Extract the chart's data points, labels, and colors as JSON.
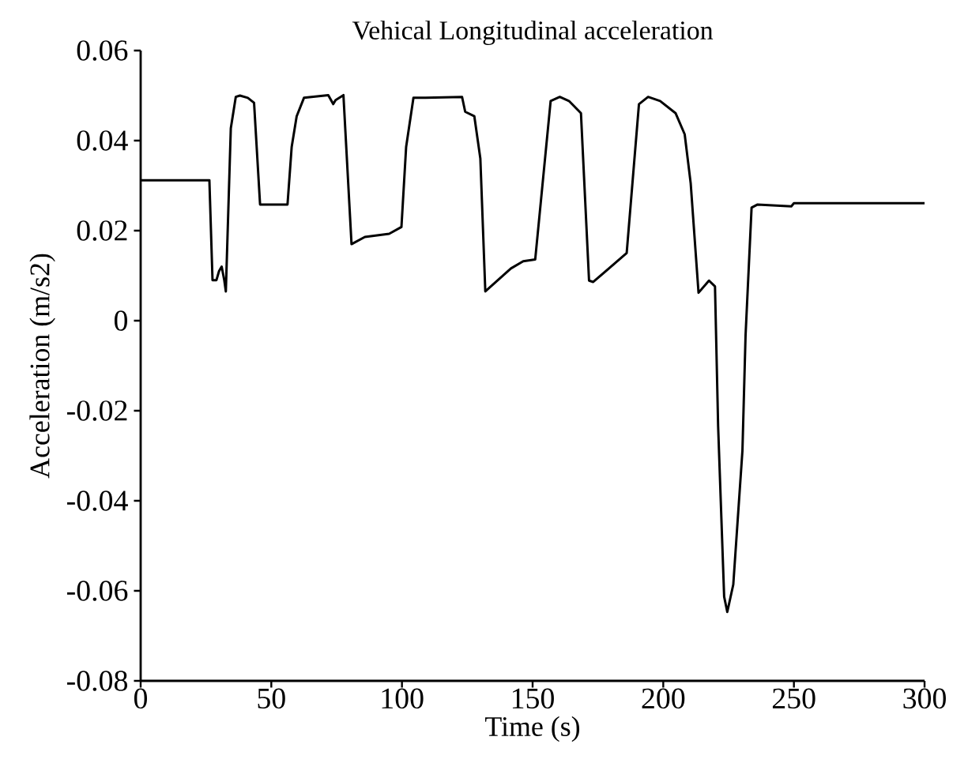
{
  "chart_data": {
    "type": "line",
    "title": "Vehical Longitudinal acceleration",
    "xlabel": "Time (s)",
    "ylabel": "Acceleration (m/s2)",
    "xlim": [
      0,
      300
    ],
    "ylim": [
      -0.08,
      0.06
    ],
    "xticks": [
      0,
      50,
      100,
      150,
      200,
      250,
      300
    ],
    "yticks": [
      -0.08,
      -0.06,
      -0.04,
      -0.02,
      0,
      0.02,
      0.04,
      0.06
    ],
    "series": [
      {
        "color": "#000000",
        "x": [
          0,
          26.3,
          27.5,
          29,
          30,
          31,
          32,
          32.6,
          34.5,
          36.4,
          38,
          41,
          43.4,
          45.7,
          56.2,
          57.8,
          59.7,
          62.5,
          71.8,
          73.7,
          74.6,
          77.6,
          80.7,
          85.8,
          95.1,
          99.8,
          101.6,
          104.4,
          109,
          123,
          124.2,
          127.7,
          130,
          131.9,
          141.7,
          146.4,
          151,
          156.9,
          160.4,
          163.9,
          168.5,
          171.6,
          173.2,
          186,
          190.7,
          194.2,
          198.8,
          204.7,
          208.2,
          210.5,
          213.5,
          217.5,
          219.8,
          221,
          223.3,
          224.5,
          226.8,
          230.3,
          231.5,
          233.8,
          236.1,
          249,
          250,
          300
        ],
        "values": [
          0.0312,
          0.0312,
          0.009,
          0.009,
          0.011,
          0.012,
          0.009,
          0.0065,
          0.0427,
          0.0497,
          0.05,
          0.0495,
          0.0484,
          0.0258,
          0.0258,
          0.0386,
          0.0454,
          0.0495,
          0.0501,
          0.0481,
          0.049,
          0.0501,
          0.017,
          0.0186,
          0.0193,
          0.0208,
          0.0386,
          0.0495,
          0.0495,
          0.0497,
          0.0464,
          0.0454,
          0.036,
          0.0065,
          0.0116,
          0.0132,
          0.0136,
          0.0488,
          0.0497,
          0.0488,
          0.0461,
          0.0089,
          0.0086,
          0.015,
          0.0481,
          0.0497,
          0.0488,
          0.0461,
          0.0414,
          0.0305,
          0.0062,
          0.0089,
          0.0076,
          -0.0235,
          -0.0613,
          -0.0647,
          -0.0586,
          -0.0289,
          -0.0032,
          0.0251,
          0.0258,
          0.0254,
          0.0261,
          0.0261
        ]
      }
    ]
  }
}
